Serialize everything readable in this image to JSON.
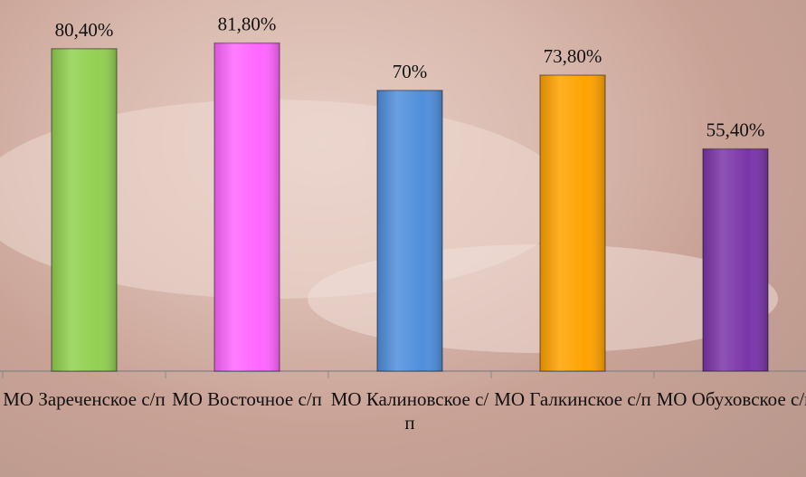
{
  "chart_data": {
    "type": "bar",
    "categories": [
      "МО Зареченское с/п",
      "МО Восточное с/п",
      "МО Калиновское с/п",
      "МО Галкинское с/п",
      "МО Обуховское с/п"
    ],
    "values": [
      80.4,
      81.8,
      70,
      73.8,
      55.4
    ],
    "value_labels": [
      "80,40%",
      "81,80%",
      "70%",
      "73,80%",
      "55,40%"
    ],
    "colors": [
      "#92d050",
      "#ff66ff",
      "#4f8fdc",
      "#ffa200",
      "#7a35a8"
    ]
  }
}
